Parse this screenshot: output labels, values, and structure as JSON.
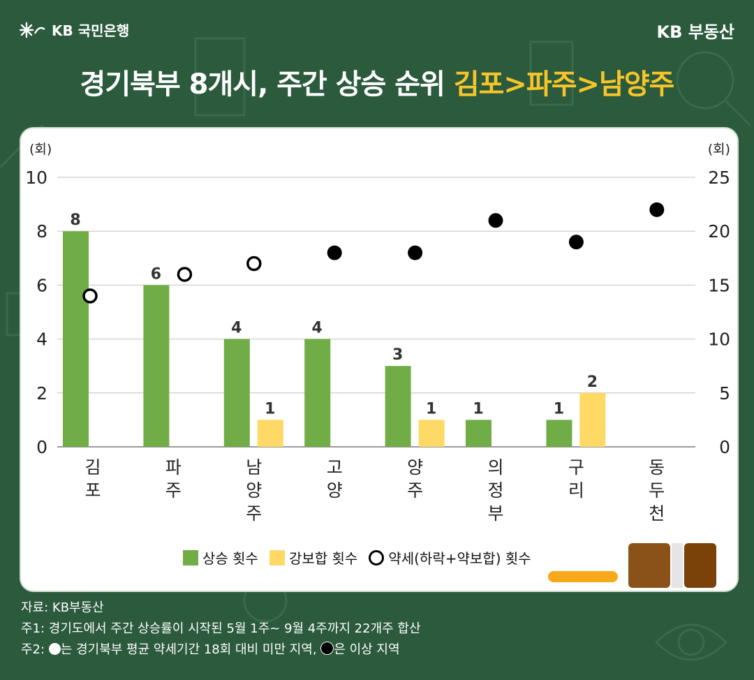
{
  "header": {
    "bank_name": "KB 국민은행",
    "brand": "KB 부동산",
    "title_main": "경기북부 8개시, 주간 상승 순위 ",
    "title_highlight": "김포>파주>남양주"
  },
  "colors": {
    "background": "#2b5a3d",
    "rise_bar": "#70ad47",
    "flat_bar": "#ffd966",
    "highlight": "#f7c52a"
  },
  "chart_data": {
    "type": "bar",
    "categories": [
      "김포",
      "파주",
      "남양주",
      "고양",
      "양주",
      "의정부",
      "구리",
      "동두천"
    ],
    "left_axis": {
      "unit": "(회)",
      "ylim": [
        0,
        10
      ],
      "ticks": [
        "0",
        "2",
        "4",
        "6",
        "8",
        "10"
      ]
    },
    "right_axis": {
      "unit": "(회)",
      "ylim": [
        0,
        25
      ],
      "ticks": [
        "0",
        "5",
        "10",
        "15",
        "20",
        "25"
      ]
    },
    "series": [
      {
        "name": "상승 횟수",
        "type": "bar",
        "axis": "left",
        "values": [
          8,
          6,
          4,
          4,
          3,
          1,
          1,
          0
        ],
        "labels": [
          "8",
          "6",
          "4",
          "4",
          "3",
          "1",
          "1",
          ""
        ]
      },
      {
        "name": "강보합 횟수",
        "type": "bar",
        "axis": "left",
        "values": [
          0,
          0,
          1,
          0,
          1,
          0,
          2,
          0
        ],
        "labels": [
          "",
          "",
          "1",
          "",
          "1",
          "",
          "2",
          ""
        ]
      },
      {
        "name": "약세(하락+약보합) 횟수",
        "type": "scatter",
        "axis": "right",
        "values": [
          14,
          16,
          17,
          18,
          18,
          21,
          19,
          22
        ],
        "filled": [
          false,
          false,
          false,
          true,
          true,
          true,
          true,
          true
        ]
      }
    ],
    "grid": true,
    "legend_position": "bottom"
  },
  "legend": {
    "rise": "상승 횟수",
    "flat": "강보합 횟수",
    "weak": "약세(하락+약보합) 횟수"
  },
  "notes": {
    "source": "자료: KB부동산",
    "note1": "주1: 경기도에서 주간 상승률이 시작된 5월 1주~ 9월 4주까지 22개주 합산",
    "note2_prefix": "주2: ",
    "note2_mid": "는 경기북부 평균 약세기간 18회 대비 미만 지역, ",
    "note2_end": "은 이상 지역"
  }
}
